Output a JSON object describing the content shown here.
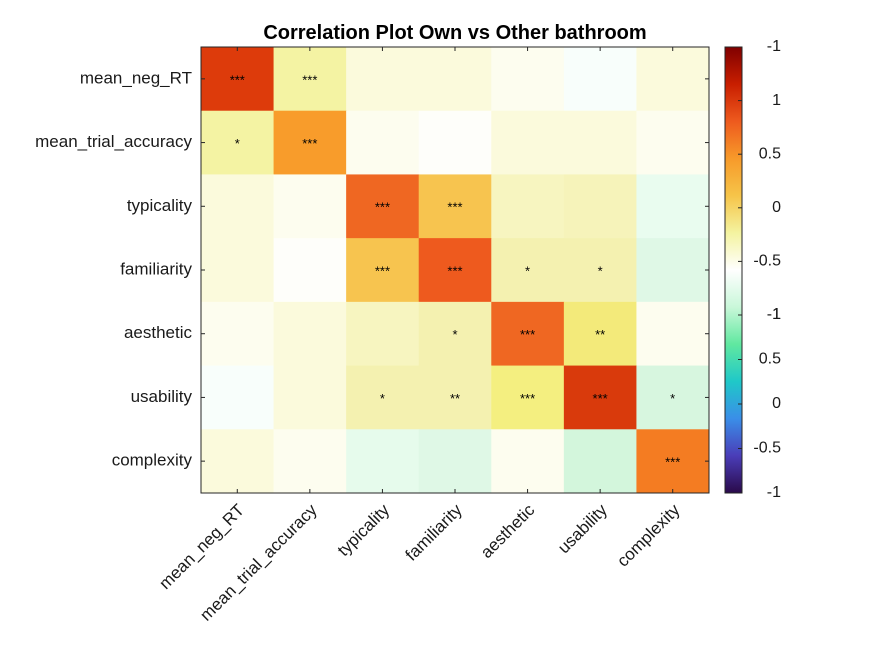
{
  "chart_data": {
    "type": "heatmap",
    "title": "Correlation Plot Own vs Other bathroom",
    "xlabel": "",
    "ylabel": "",
    "row_labels": [
      "mean_neg_RT",
      "mean_trial_accuracy",
      "typicality",
      "familiarity",
      "aesthetic",
      "usability",
      "complexity"
    ],
    "col_labels": [
      "mean_neg_RT",
      "mean_trial_accuracy",
      "typicality",
      "familiarity",
      "aesthetic",
      "usability",
      "complexity"
    ],
    "values": [
      [
        1.0,
        0.35,
        0.1,
        0.1,
        0.05,
        -0.03,
        0.1
      ],
      [
        0.35,
        1.0,
        0.05,
        0.02,
        0.05,
        0.05,
        0.03
      ],
      [
        0.1,
        0.05,
        1.0,
        0.6,
        0.2,
        0.2,
        -0.1
      ],
      [
        0.1,
        0.02,
        0.6,
        1.0,
        0.25,
        0.2,
        -0.15
      ],
      [
        0.05,
        0.05,
        0.2,
        0.25,
        1.0,
        0.4,
        0.05
      ],
      [
        -0.03,
        0.05,
        0.25,
        0.25,
        0.4,
        1.0,
        -0.2
      ],
      [
        0.1,
        0.03,
        -0.1,
        -0.15,
        0.05,
        -0.2,
        1.0
      ]
    ],
    "significance": [
      [
        "***",
        "***",
        "",
        "",
        "",
        "",
        ""
      ],
      [
        "*",
        "***",
        "",
        "",
        "",
        "",
        ""
      ],
      [
        "",
        "",
        "***",
        "***",
        "",
        "",
        ""
      ],
      [
        "",
        "",
        "***",
        "***",
        "*",
        "*",
        ""
      ],
      [
        "",
        "",
        "",
        "*",
        "***",
        "**",
        ""
      ],
      [
        "",
        "",
        "*",
        "**",
        "***",
        "***",
        "*"
      ],
      [
        "",
        "",
        "",
        "",
        "",
        "",
        "***"
      ]
    ],
    "colorbar": {
      "top_section_ticks": [
        "-1",
        "1",
        "0.5",
        "0",
        "-0.5",
        "-1"
      ],
      "bottom_section_ticks": [
        "1",
        "0.5",
        "0",
        "-0.5",
        "-1"
      ],
      "top_colormap": [
        "#800000",
        "#c81e00",
        "#ee5a1e",
        "#f79a2a",
        "#f6c449",
        "#f4f3a0",
        "#ffffff"
      ],
      "bottom_colormap": [
        "#ffffff",
        "#c9f7d9",
        "#60e8a0",
        "#1fc8c8",
        "#3a8ee8",
        "#4a3db8",
        "#2a0a4a"
      ]
    },
    "cell_colors": [
      [
        "#dd3b0b",
        "#f4f3a3",
        "#fbfadc",
        "#fbfadc",
        "#fdfdef",
        "#f8fefb",
        "#fbfadc"
      ],
      [
        "#f4f3a3",
        "#f89c2b",
        "#fdfdef",
        "#fefefa",
        "#fbfadc",
        "#fbfadc",
        "#fdfdef"
      ],
      [
        "#fbfadc",
        "#fdfdef",
        "#ef6722",
        "#f7c44f",
        "#f7f5c0",
        "#f6f3ba",
        "#e9fcef"
      ],
      [
        "#fbfadc",
        "#fefefa",
        "#f7c44f",
        "#ee5a1e",
        "#f4f1b0",
        "#f4f1b0",
        "#dff8e6"
      ],
      [
        "#fdfdef",
        "#fbfadc",
        "#f7f5c0",
        "#f4f1b0",
        "#ef6722",
        "#f3ea7a",
        "#fdfdef"
      ],
      [
        "#f8fefb",
        "#fbfadc",
        "#f4f1b0",
        "#f4f1b0",
        "#f4ef80",
        "#d93a0c",
        "#d7f6df"
      ],
      [
        "#fbfadc",
        "#fdfdef",
        "#e6fbec",
        "#dff8e6",
        "#fdfdef",
        "#d3f6dc",
        "#f47c22"
      ]
    ]
  }
}
